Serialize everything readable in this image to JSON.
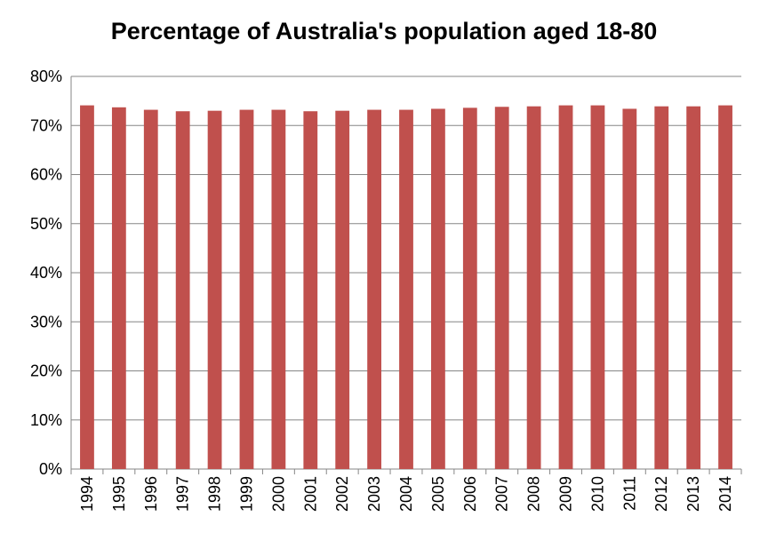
{
  "chart_data": {
    "type": "bar",
    "title": "Percentage of Australia's population aged 18-80",
    "xlabel": "",
    "ylabel": "",
    "categories": [
      "1994",
      "1995",
      "1996",
      "1997",
      "1998",
      "1999",
      "2000",
      "2001",
      "2002",
      "2003",
      "2004",
      "2005",
      "2006",
      "2007",
      "2008",
      "2009",
      "2010",
      "2011",
      "2012",
      "2013",
      "2014"
    ],
    "values": [
      74.1,
      73.7,
      73.2,
      72.9,
      73.0,
      73.2,
      73.2,
      72.9,
      73.0,
      73.2,
      73.2,
      73.4,
      73.6,
      73.8,
      73.9,
      74.1,
      74.1,
      73.4,
      73.9,
      73.9,
      74.1
    ],
    "ylim": [
      0,
      80
    ],
    "yticks": [
      0,
      10,
      20,
      30,
      40,
      50,
      60,
      70,
      80
    ],
    "ytick_suffix": "%",
    "grid": true,
    "legend": "none",
    "bar_color": "#c0504d"
  }
}
